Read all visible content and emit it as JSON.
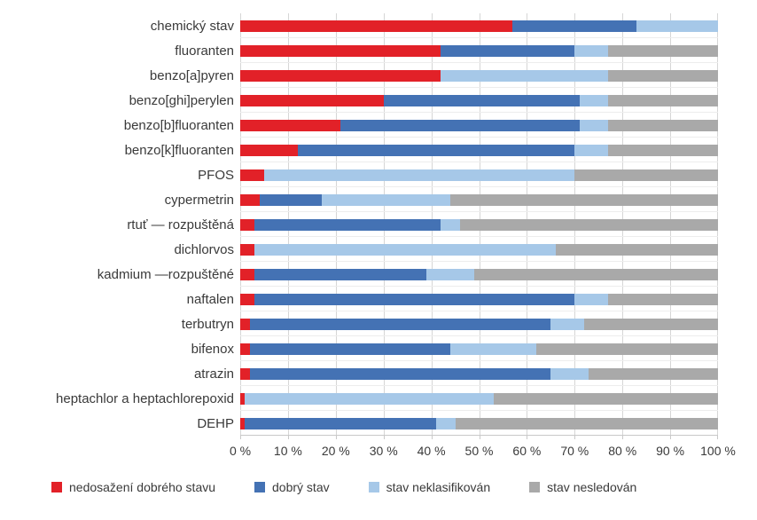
{
  "chart_data": {
    "type": "bar",
    "orientation": "horizontal",
    "stacked": true,
    "unit": "%",
    "title": "",
    "xlabel": "",
    "ylabel": "",
    "xlim": [
      0,
      100
    ],
    "grid": "vertical-and-horizontal",
    "legend_position": "bottom",
    "categories": [
      "chemický stav",
      "fluoranten",
      "benzo[a]pyren",
      "benzo[ghi]perylen",
      "benzo[b]fluoranten",
      "benzo[k]fluoranten",
      "PFOS",
      "cypermetrin",
      "rtuť — rozpuštěná",
      "dichlorvos",
      "kadmium —rozpuštěné",
      "naftalen",
      "terbutryn",
      "bifenox",
      "atrazin",
      "heptachlor a heptachlorepoxid",
      "DEHP"
    ],
    "series": [
      {
        "name": "nedosažení dobrého stavu",
        "color": "#e22128",
        "values": [
          57,
          42,
          42,
          30,
          21,
          12,
          5,
          4,
          3,
          3,
          3,
          3,
          2,
          2,
          2,
          1,
          1
        ]
      },
      {
        "name": "dobrý stav",
        "color": "#4472b4",
        "values": [
          26,
          28,
          0,
          41,
          50,
          58,
          0,
          13,
          39,
          0,
          36,
          67,
          63,
          42,
          63,
          0,
          40
        ]
      },
      {
        "name": "stav neklasifikován",
        "color": "#a6c8e8",
        "values": [
          17,
          7,
          35,
          6,
          6,
          7,
          65,
          27,
          4,
          63,
          10,
          7,
          7,
          18,
          8,
          52,
          4
        ]
      },
      {
        "name": "stav nesledován",
        "color": "#a9a9a9",
        "values": [
          0,
          23,
          23,
          23,
          23,
          23,
          30,
          56,
          54,
          34,
          51,
          23,
          28,
          38,
          27,
          47,
          55
        ]
      }
    ],
    "x_ticks": [
      "0 %",
      "10 %",
      "20 %",
      "30 %",
      "40 %",
      "50 %",
      "60 %",
      "70 %",
      "80 %",
      "90 %",
      "100 %"
    ]
  }
}
